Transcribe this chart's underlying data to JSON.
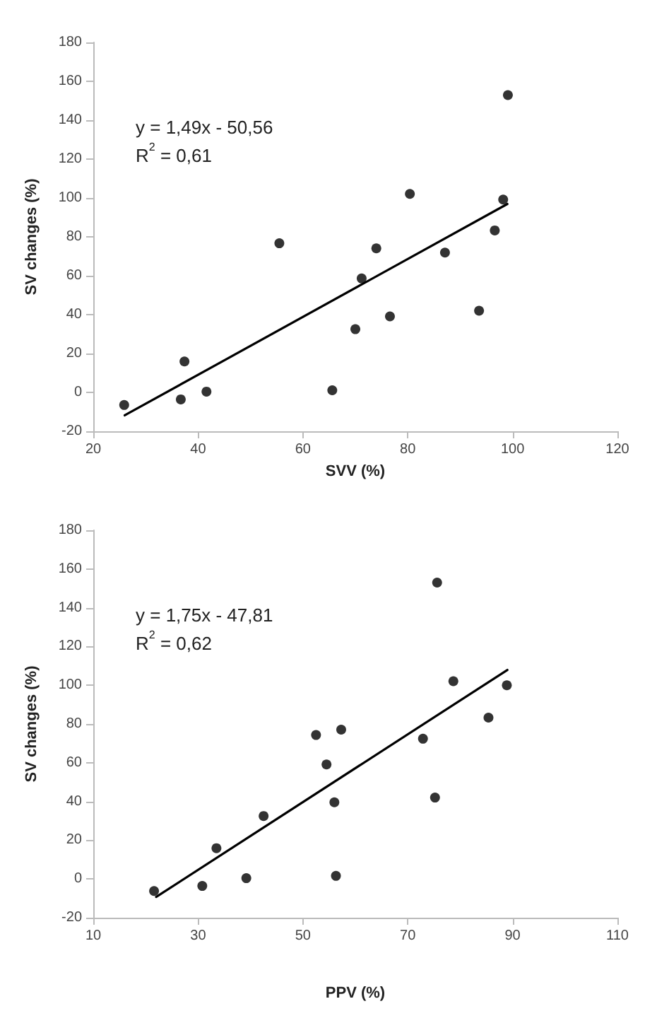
{
  "chart_data": [
    {
      "type": "scatter",
      "xlabel": "SVV (%)",
      "ylabel": "SV changes (%)",
      "annotations": [
        "y = 1,49x - 50,56",
        "R$^{2}$ = 0,61"
      ],
      "xlim": [
        20,
        120
      ],
      "xticks": [
        20,
        40,
        60,
        80,
        100,
        120
      ],
      "ylim": [
        -20,
        180
      ],
      "yticks": [
        -20,
        0,
        20,
        40,
        60,
        80,
        100,
        120,
        140,
        160,
        180
      ],
      "grid": false,
      "marker": "circle",
      "series": [
        {
          "color": "#000000",
          "x": [
            25.9,
            36.7,
            37.4,
            41.6,
            55.5,
            65.6,
            70.0,
            71.2,
            74.0,
            76.6,
            80.4,
            87.1,
            93.6,
            96.6,
            98.2,
            99.1
          ],
          "values": [
            -6.5,
            -3.6,
            15.9,
            0.4,
            76.7,
            1.1,
            32.5,
            58.6,
            74.1,
            39.1,
            102.1,
            71.9,
            42.0,
            83.3,
            99.2,
            152.9
          ]
        },
        {
          "type": "line",
          "color": "#000000",
          "marker": "none",
          "line_style": "solid",
          "x": [
            26,
            99
          ],
          "values": [
            -11.8,
            96.9
          ]
        }
      ]
    },
    {
      "type": "scatter",
      "xlabel": "PPV (%)",
      "ylabel": "SV changes (%)",
      "annotations": [
        "y = 1,75x - 47,81",
        "R$^{2}$ = 0,62"
      ],
      "xlim": [
        10,
        110
      ],
      "xticks": [
        10,
        30,
        50,
        70,
        90,
        110
      ],
      "ylim": [
        -20,
        180
      ],
      "yticks": [
        -20,
        0,
        20,
        40,
        60,
        80,
        100,
        120,
        140,
        160,
        180
      ],
      "grid": false,
      "marker": "circle",
      "series": [
        {
          "color": "#000000",
          "x": [
            21.6,
            30.8,
            33.5,
            39.2,
            42.5,
            52.5,
            54.5,
            57.3,
            56.0,
            56.3,
            72.9,
            75.6,
            75.2,
            78.7,
            85.4,
            88.9
          ],
          "values": [
            -6.2,
            -3.6,
            15.9,
            0.4,
            32.5,
            74.3,
            59.1,
            77.1,
            39.6,
            1.6,
            72.4,
            153.0,
            42.0,
            102.1,
            83.3,
            100.0
          ]
        },
        {
          "type": "line",
          "color": "#000000",
          "marker": "none",
          "line_style": "solid",
          "x": [
            22,
            89
          ],
          "values": [
            -9.3,
            107.9
          ]
        }
      ]
    }
  ]
}
